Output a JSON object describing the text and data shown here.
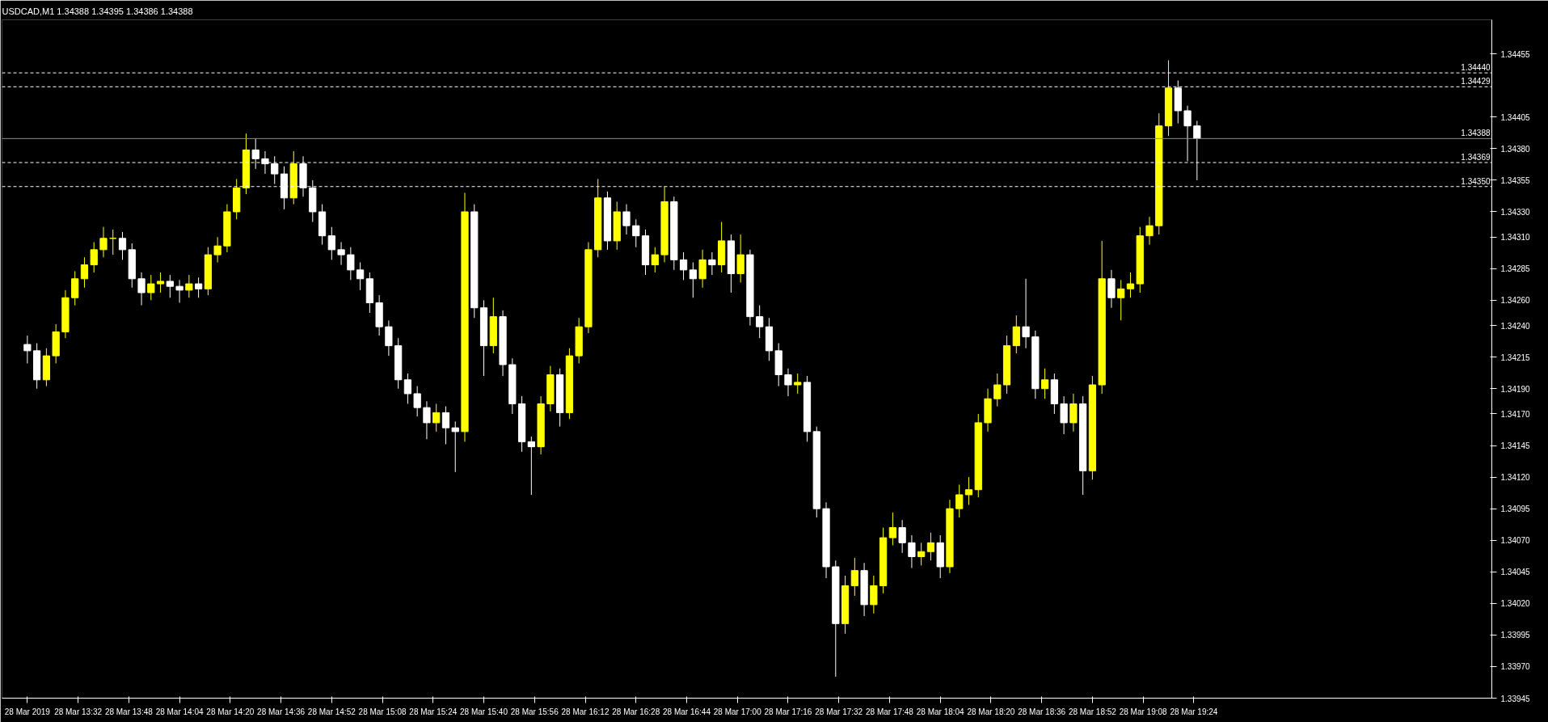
{
  "chart_data": {
    "type": "candlestick",
    "title": "USDCAD,M1  1.34388 1.34395 1.34386 1.34388",
    "x": [
      "2019-03-28T13:16",
      "2019-03-28T13:19",
      "2019-03-28T13:22",
      "2019-03-28T13:25",
      "2019-03-28T13:28",
      "2019-03-28T13:31",
      "2019-03-28T13:34",
      "2019-03-28T13:37",
      "2019-03-28T13:40",
      "2019-03-28T13:43",
      "2019-03-28T13:46",
      "2019-03-28T13:49",
      "2019-03-28T13:52",
      "2019-03-28T13:55",
      "2019-03-28T13:58",
      "2019-03-28T14:01",
      "2019-03-28T14:04",
      "2019-03-28T14:07",
      "2019-03-28T14:10",
      "2019-03-28T14:13",
      "2019-03-28T14:16",
      "2019-03-28T14:19",
      "2019-03-28T14:22",
      "2019-03-28T14:25",
      "2019-03-28T14:28",
      "2019-03-28T14:31",
      "2019-03-28T14:34",
      "2019-03-28T14:37",
      "2019-03-28T14:40",
      "2019-03-28T14:43",
      "2019-03-28T14:46",
      "2019-03-28T14:49",
      "2019-03-28T14:52",
      "2019-03-28T14:55",
      "2019-03-28T14:58",
      "2019-03-28T15:01",
      "2019-03-28T15:04",
      "2019-03-28T15:07",
      "2019-03-28T15:10",
      "2019-03-28T15:13",
      "2019-03-28T15:16",
      "2019-03-28T15:19",
      "2019-03-28T15:22",
      "2019-03-28T15:25",
      "2019-03-28T15:28",
      "2019-03-28T15:31",
      "2019-03-28T15:34",
      "2019-03-28T15:37",
      "2019-03-28T15:40",
      "2019-03-28T15:43",
      "2019-03-28T15:46",
      "2019-03-28T15:49",
      "2019-03-28T15:52",
      "2019-03-28T15:55",
      "2019-03-28T15:58",
      "2019-03-28T16:01",
      "2019-03-28T16:04",
      "2019-03-28T16:07",
      "2019-03-28T16:10",
      "2019-03-28T16:13",
      "2019-03-28T16:16",
      "2019-03-28T16:19",
      "2019-03-28T16:22",
      "2019-03-28T16:25",
      "2019-03-28T16:28",
      "2019-03-28T16:31",
      "2019-03-28T16:34",
      "2019-03-28T16:37",
      "2019-03-28T16:40",
      "2019-03-28T16:43",
      "2019-03-28T16:46",
      "2019-03-28T16:49",
      "2019-03-28T16:52",
      "2019-03-28T16:55",
      "2019-03-28T16:58",
      "2019-03-28T17:01",
      "2019-03-28T17:04",
      "2019-03-28T17:07",
      "2019-03-28T17:10",
      "2019-03-28T17:13",
      "2019-03-28T17:16",
      "2019-03-28T17:19",
      "2019-03-28T17:22",
      "2019-03-28T17:25",
      "2019-03-28T17:28",
      "2019-03-28T17:31",
      "2019-03-28T17:34",
      "2019-03-28T17:37",
      "2019-03-28T17:40",
      "2019-03-28T17:43",
      "2019-03-28T17:46",
      "2019-03-28T17:49",
      "2019-03-28T17:52",
      "2019-03-28T17:55",
      "2019-03-28T17:58",
      "2019-03-28T18:01",
      "2019-03-28T18:04",
      "2019-03-28T18:07",
      "2019-03-28T18:10",
      "2019-03-28T18:13",
      "2019-03-28T18:16",
      "2019-03-28T18:19",
      "2019-03-28T18:22",
      "2019-03-28T18:25",
      "2019-03-28T18:28",
      "2019-03-28T18:31",
      "2019-03-28T18:34",
      "2019-03-28T18:37",
      "2019-03-28T18:40",
      "2019-03-28T18:43",
      "2019-03-28T18:46",
      "2019-03-28T18:49",
      "2019-03-28T18:52",
      "2019-03-28T18:55",
      "2019-03-28T18:58",
      "2019-03-28T19:01",
      "2019-03-28T19:04",
      "2019-03-28T19:07",
      "2019-03-28T19:10",
      "2019-03-28T19:13",
      "2019-03-28T19:16",
      "2019-03-28T19:19",
      "2019-03-28T19:22",
      "2019-03-28T19:25"
    ],
    "ohlc": [
      [
        1.34225,
        1.34232,
        1.3421,
        1.3422
      ],
      [
        1.3422,
        1.34226,
        1.3419,
        1.34197
      ],
      [
        1.34197,
        1.34222,
        1.34192,
        1.34216
      ],
      [
        1.34216,
        1.34241,
        1.3421,
        1.34235
      ],
      [
        1.34235,
        1.34268,
        1.3423,
        1.34262
      ],
      [
        1.34262,
        1.34283,
        1.34256,
        1.34277
      ],
      [
        1.34277,
        1.34294,
        1.3427,
        1.34288
      ],
      [
        1.34288,
        1.34306,
        1.34282,
        1.343
      ],
      [
        1.343,
        1.34318,
        1.34294,
        1.34309
      ],
      [
        1.34309,
        1.34316,
        1.34296,
        1.34309
      ],
      [
        1.34309,
        1.34314,
        1.34292,
        1.343
      ],
      [
        1.343,
        1.34305,
        1.3427,
        1.34277
      ],
      [
        1.34277,
        1.34282,
        1.34256,
        1.34266
      ],
      [
        1.34266,
        1.3428,
        1.3426,
        1.34273
      ],
      [
        1.34273,
        1.34282,
        1.34266,
        1.34275
      ],
      [
        1.34275,
        1.3428,
        1.34262,
        1.34271
      ],
      [
        1.34271,
        1.34276,
        1.34258,
        1.34268
      ],
      [
        1.34268,
        1.3428,
        1.34262,
        1.34273
      ],
      [
        1.34273,
        1.34278,
        1.34262,
        1.34269
      ],
      [
        1.34269,
        1.34302,
        1.34264,
        1.34296
      ],
      [
        1.34296,
        1.3431,
        1.3429,
        1.34303
      ],
      [
        1.34303,
        1.34336,
        1.34298,
        1.3433
      ],
      [
        1.3433,
        1.34356,
        1.34324,
        1.34349
      ],
      [
        1.34349,
        1.34392,
        1.34344,
        1.34379
      ],
      [
        1.34379,
        1.34388,
        1.34364,
        1.34372
      ],
      [
        1.34372,
        1.34378,
        1.3436,
        1.34368
      ],
      [
        1.34368,
        1.34374,
        1.34352,
        1.3436
      ],
      [
        1.3436,
        1.34366,
        1.34332,
        1.34341
      ],
      [
        1.34341,
        1.34378,
        1.34336,
        1.34368
      ],
      [
        1.34368,
        1.34374,
        1.34342,
        1.34349
      ],
      [
        1.34349,
        1.34355,
        1.34322,
        1.3433
      ],
      [
        1.3433,
        1.34336,
        1.34304,
        1.34311
      ],
      [
        1.34311,
        1.34318,
        1.34292,
        1.343
      ],
      [
        1.343,
        1.34306,
        1.34288,
        1.34296
      ],
      [
        1.34296,
        1.34302,
        1.34276,
        1.34284
      ],
      [
        1.34284,
        1.3429,
        1.34268,
        1.34277
      ],
      [
        1.34277,
        1.34282,
        1.3425,
        1.34258
      ],
      [
        1.34258,
        1.34264,
        1.34232,
        1.34239
      ],
      [
        1.34239,
        1.34244,
        1.34216,
        1.34224
      ],
      [
        1.34224,
        1.3423,
        1.3419,
        1.34197
      ],
      [
        1.34197,
        1.34202,
        1.34178,
        1.34186
      ],
      [
        1.34186,
        1.34192,
        1.34168,
        1.34175
      ],
      [
        1.34175,
        1.3418,
        1.3415,
        1.34163
      ],
      [
        1.34163,
        1.34178,
        1.34156,
        1.34171
      ],
      [
        1.34171,
        1.34176,
        1.34146,
        1.34159
      ],
      [
        1.34159,
        1.34164,
        1.34124,
        1.34156
      ],
      [
        1.34156,
        1.34345,
        1.34148,
        1.3433
      ],
      [
        1.3433,
        1.34336,
        1.34246,
        1.34254
      ],
      [
        1.34254,
        1.3426,
        1.342,
        1.34224
      ],
      [
        1.34224,
        1.34262,
        1.34218,
        1.34247
      ],
      [
        1.34247,
        1.34252,
        1.342,
        1.34209
      ],
      [
        1.34209,
        1.34214,
        1.3417,
        1.34178
      ],
      [
        1.34178,
        1.34184,
        1.3414,
        1.34148
      ],
      [
        1.34148,
        1.34152,
        1.34106,
        1.34144
      ],
      [
        1.34144,
        1.34184,
        1.34138,
        1.34178
      ],
      [
        1.34178,
        1.34208,
        1.34172,
        1.34201
      ],
      [
        1.34201,
        1.34206,
        1.3416,
        1.34171
      ],
      [
        1.34171,
        1.34222,
        1.34166,
        1.34216
      ],
      [
        1.34216,
        1.34246,
        1.3421,
        1.34239
      ],
      [
        1.34239,
        1.34306,
        1.34234,
        1.343
      ],
      [
        1.343,
        1.34356,
        1.34294,
        1.34341
      ],
      [
        1.34341,
        1.34346,
        1.343,
        1.34307
      ],
      [
        1.34307,
        1.34338,
        1.343,
        1.3433
      ],
      [
        1.3433,
        1.34336,
        1.34312,
        1.34319
      ],
      [
        1.34319,
        1.34324,
        1.34302,
        1.34311
      ],
      [
        1.34311,
        1.34316,
        1.3428,
        1.34288
      ],
      [
        1.34288,
        1.34302,
        1.34282,
        1.34296
      ],
      [
        1.34296,
        1.3435,
        1.3429,
        1.34338
      ],
      [
        1.34338,
        1.34342,
        1.34284,
        1.34292
      ],
      [
        1.34292,
        1.34298,
        1.34276,
        1.34284
      ],
      [
        1.34284,
        1.3429,
        1.34262,
        1.34277
      ],
      [
        1.34277,
        1.343,
        1.3427,
        1.34292
      ],
      [
        1.34292,
        1.34298,
        1.3428,
        1.34288
      ],
      [
        1.34288,
        1.34322,
        1.34282,
        1.34307
      ],
      [
        1.34307,
        1.34312,
        1.34266,
        1.34281
      ],
      [
        1.34281,
        1.34312,
        1.34274,
        1.34296
      ],
      [
        1.34296,
        1.343,
        1.3424,
        1.34247
      ],
      [
        1.34247,
        1.34256,
        1.3423,
        1.34239
      ],
      [
        1.34239,
        1.34246,
        1.34212,
        1.3422
      ],
      [
        1.3422,
        1.34226,
        1.34192,
        1.34201
      ],
      [
        1.34201,
        1.34206,
        1.34184,
        1.34193
      ],
      [
        1.34193,
        1.34202,
        1.34186,
        1.34195
      ],
      [
        1.34195,
        1.342,
        1.34148,
        1.34156
      ],
      [
        1.34156,
        1.3416,
        1.34088,
        1.34095
      ],
      [
        1.34095,
        1.341,
        1.3404,
        1.34049
      ],
      [
        1.34049,
        1.34054,
        1.33962,
        1.34004
      ],
      [
        1.34004,
        1.34042,
        1.33996,
        1.34034
      ],
      [
        1.34034,
        1.34056,
        1.34026,
        1.34046
      ],
      [
        1.34046,
        1.34052,
        1.3401,
        1.34019
      ],
      [
        1.34019,
        1.34042,
        1.34012,
        1.34034
      ],
      [
        1.34034,
        1.3408,
        1.34028,
        1.34072
      ],
      [
        1.34072,
        1.34092,
        1.34066,
        1.3408
      ],
      [
        1.3408,
        1.34086,
        1.3406,
        1.34068
      ],
      [
        1.34068,
        1.34074,
        1.34048,
        1.34057
      ],
      [
        1.34057,
        1.34068,
        1.3405,
        1.34061
      ],
      [
        1.34061,
        1.34076,
        1.34054,
        1.34068
      ],
      [
        1.34068,
        1.34074,
        1.3404,
        1.34049
      ],
      [
        1.34049,
        1.34102,
        1.34044,
        1.34095
      ],
      [
        1.34095,
        1.34114,
        1.34088,
        1.34106
      ],
      [
        1.34106,
        1.3412,
        1.34098,
        1.3411
      ],
      [
        1.3411,
        1.3417,
        1.34104,
        1.34163
      ],
      [
        1.34163,
        1.3419,
        1.34156,
        1.34182
      ],
      [
        1.34182,
        1.34202,
        1.34176,
        1.34193
      ],
      [
        1.34193,
        1.34232,
        1.34186,
        1.34224
      ],
      [
        1.34224,
        1.34248,
        1.34218,
        1.34239
      ],
      [
        1.34239,
        1.34277,
        1.34222,
        1.34231
      ],
      [
        1.34231,
        1.34236,
        1.34182,
        1.3419
      ],
      [
        1.3419,
        1.34206,
        1.34182,
        1.34197
      ],
      [
        1.34197,
        1.34202,
        1.3417,
        1.34178
      ],
      [
        1.34178,
        1.34184,
        1.34154,
        1.34163
      ],
      [
        1.34163,
        1.34186,
        1.34156,
        1.34178
      ],
      [
        1.34178,
        1.34184,
        1.34106,
        1.34125
      ],
      [
        1.34125,
        1.342,
        1.34118,
        1.34193
      ],
      [
        1.34193,
        1.34307,
        1.34186,
        1.34277
      ],
      [
        1.34277,
        1.34284,
        1.34254,
        1.34262
      ],
      [
        1.34262,
        1.34276,
        1.34244,
        1.34269
      ],
      [
        1.34269,
        1.34282,
        1.34262,
        1.34273
      ],
      [
        1.34273,
        1.34318,
        1.34266,
        1.34311
      ],
      [
        1.34311,
        1.34326,
        1.34304,
        1.34319
      ],
      [
        1.34319,
        1.34408,
        1.34312,
        1.34398
      ],
      [
        1.34398,
        1.3445,
        1.3439,
        1.34428
      ],
      [
        1.34428,
        1.34434,
        1.344,
        1.3441
      ],
      [
        1.3441,
        1.34414,
        1.3437,
        1.34398
      ],
      [
        1.34398,
        1.34402,
        1.34355,
        1.34388
      ]
    ],
    "colors": [
      "#ffffff",
      "#ffffff",
      "#ffff00",
      "#ffff00",
      "#ffff00",
      "#ffff00",
      "#ffff00",
      "#ffff00",
      "#ffff00",
      "#ffff00",
      "#ffffff",
      "#ffffff",
      "#ffffff",
      "#ffff00",
      "#ffff00",
      "#ffffff",
      "#ffffff",
      "#ffff00",
      "#ffffff",
      "#ffff00",
      "#ffff00",
      "#ffff00",
      "#ffff00",
      "#ffff00",
      "#ffffff",
      "#ffffff",
      "#ffffff",
      "#ffffff",
      "#ffff00",
      "#ffffff",
      "#ffffff",
      "#ffffff",
      "#ffffff",
      "#ffffff",
      "#ffffff",
      "#ffffff",
      "#ffffff",
      "#ffffff",
      "#ffffff",
      "#ffffff",
      "#ffffff",
      "#ffffff",
      "#ffffff",
      "#ffff00",
      "#ffffff",
      "#ffffff",
      "#ffff00",
      "#ffffff",
      "#ffffff",
      "#ffff00",
      "#ffffff",
      "#ffffff",
      "#ffffff",
      "#ffffff",
      "#ffff00",
      "#ffff00",
      "#ffffff",
      "#ffff00",
      "#ffff00",
      "#ffff00",
      "#ffff00",
      "#ffffff",
      "#ffff00",
      "#ffffff",
      "#ffffff",
      "#ffffff",
      "#ffff00",
      "#ffff00",
      "#ffffff",
      "#ffffff",
      "#ffffff",
      "#ffff00",
      "#ffffff",
      "#ffff00",
      "#ffffff",
      "#ffff00",
      "#ffffff",
      "#ffffff",
      "#ffffff",
      "#ffffff",
      "#ffffff",
      "#ffff00",
      "#ffffff",
      "#ffffff",
      "#ffffff",
      "#ffffff",
      "#ffff00",
      "#ffff00",
      "#ffffff",
      "#ffff00",
      "#ffff00",
      "#ffff00",
      "#ffffff",
      "#ffffff",
      "#ffff00",
      "#ffff00",
      "#ffffff",
      "#ffff00",
      "#ffff00",
      "#ffff00",
      "#ffff00",
      "#ffff00",
      "#ffff00",
      "#ffff00",
      "#ffff00",
      "#ffffff",
      "#ffffff",
      "#ffff00",
      "#ffffff",
      "#ffffff",
      "#ffff00",
      "#ffffff",
      "#ffff00",
      "#ffff00",
      "#ffffff",
      "#ffff00",
      "#ffff00",
      "#ffff00",
      "#ffff00",
      "#ffff00",
      "#ffff00",
      "#ffffff",
      "#ffffff",
      "#ffffff"
    ],
    "xlim": [
      "2019-03-28T13:08",
      "2019-03-28T20:58"
    ],
    "xticks": [
      {
        "value": "2019-03-28T13:16",
        "label": "28 Mar 2019"
      },
      {
        "value": "2019-03-28T13:32",
        "label": "28 Mar 13:32"
      },
      {
        "value": "2019-03-28T13:48",
        "label": "28 Mar 13:48"
      },
      {
        "value": "2019-03-28T14:04",
        "label": "28 Mar 14:04"
      },
      {
        "value": "2019-03-28T14:20",
        "label": "28 Mar 14:20"
      },
      {
        "value": "2019-03-28T14:36",
        "label": "28 Mar 14:36"
      },
      {
        "value": "2019-03-28T14:52",
        "label": "28 Mar 14:52"
      },
      {
        "value": "2019-03-28T15:08",
        "label": "28 Mar 15:08"
      },
      {
        "value": "2019-03-28T15:24",
        "label": "28 Mar 15:24"
      },
      {
        "value": "2019-03-28T15:40",
        "label": "28 Mar 15:40"
      },
      {
        "value": "2019-03-28T15:56",
        "label": "28 Mar 15:56"
      },
      {
        "value": "2019-03-28T16:12",
        "label": "28 Mar 16:12"
      },
      {
        "value": "2019-03-28T16:28",
        "label": "28 Mar 16:28"
      },
      {
        "value": "2019-03-28T16:44",
        "label": "28 Mar 16:44"
      },
      {
        "value": "2019-03-28T17:00",
        "label": "28 Mar 17:00"
      },
      {
        "value": "2019-03-28T17:16",
        "label": "28 Mar 17:16"
      },
      {
        "value": "2019-03-28T17:32",
        "label": "28 Mar 17:32"
      },
      {
        "value": "2019-03-28T17:48",
        "label": "28 Mar 17:48"
      },
      {
        "value": "2019-03-28T18:04",
        "label": "28 Mar 18:04"
      },
      {
        "value": "2019-03-28T18:20",
        "label": "28 Mar 18:20"
      },
      {
        "value": "2019-03-28T18:36",
        "label": "28 Mar 18:36"
      },
      {
        "value": "2019-03-28T18:52",
        "label": "28 Mar 18:52"
      },
      {
        "value": "2019-03-28T19:08",
        "label": "28 Mar 19:08"
      },
      {
        "value": "2019-03-28T19:24",
        "label": "28 Mar 19:24"
      }
    ],
    "ylim": [
      1.33945,
      1.34482
    ],
    "yticks": [
      {
        "value": 1.34455,
        "label": "1.34455"
      },
      {
        "value": 1.34405,
        "label": "1.34405"
      },
      {
        "value": 1.3438,
        "label": "1.34380"
      },
      {
        "value": 1.34355,
        "label": "1.34355"
      },
      {
        "value": 1.3433,
        "label": "1.34330"
      },
      {
        "value": 1.3431,
        "label": "1.34310"
      },
      {
        "value": 1.34285,
        "label": "1.34285"
      },
      {
        "value": 1.3426,
        "label": "1.34260"
      },
      {
        "value": 1.3424,
        "label": "1.34240"
      },
      {
        "value": 1.34215,
        "label": "1.34215"
      },
      {
        "value": 1.3419,
        "label": "1.34190"
      },
      {
        "value": 1.3417,
        "label": "1.34170"
      },
      {
        "value": 1.34145,
        "label": "1.34145"
      },
      {
        "value": 1.3412,
        "label": "1.34120"
      },
      {
        "value": 1.34095,
        "label": "1.34095"
      },
      {
        "value": 1.3407,
        "label": "1.34070"
      },
      {
        "value": 1.34045,
        "label": "1.34045"
      },
      {
        "value": 1.3402,
        "label": "1.34020"
      },
      {
        "value": 1.33995,
        "label": "1.33995"
      },
      {
        "value": 1.3397,
        "label": "1.33970"
      },
      {
        "value": 1.33945,
        "label": "1.33945"
      }
    ],
    "ref_lines": [
      {
        "axis": "y",
        "value": 1.3444,
        "label": "1.34440",
        "color": "#ffffff",
        "line_style": "dashed"
      },
      {
        "axis": "y",
        "value": 1.34429,
        "label": "1.34429",
        "color": "#ffffff",
        "line_style": "dashed"
      },
      {
        "axis": "y",
        "value": 1.34388,
        "label": "1.34388",
        "color": "#8c8c8c",
        "line_style": "solid"
      },
      {
        "axis": "y",
        "value": 1.34369,
        "label": "1.34369",
        "color": "#ffffff",
        "line_style": "dashed"
      },
      {
        "axis": "y",
        "value": 1.3435,
        "label": "1.34350",
        "color": "#ffffff",
        "line_style": "dashed"
      }
    ]
  }
}
